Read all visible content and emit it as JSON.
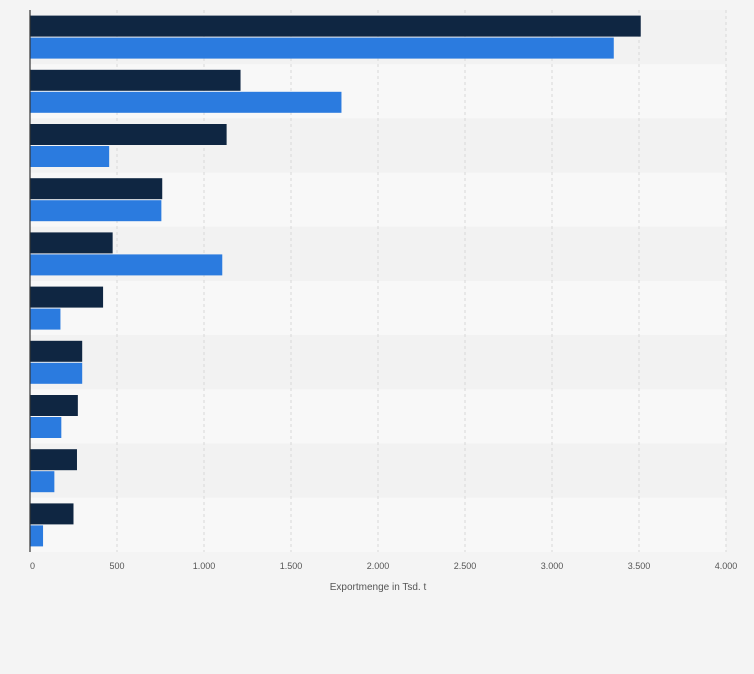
{
  "chart_data": {
    "type": "bar",
    "orientation": "horizontal",
    "categories": [
      "",
      "",
      "",
      "",
      "",
      "",
      "",
      "",
      "",
      ""
    ],
    "series": [
      {
        "color": "#0f2642",
        "values": [
          3510,
          1210,
          1130,
          760,
          475,
          420,
          300,
          275,
          270,
          250
        ]
      },
      {
        "color": "#2b7bdf",
        "values": [
          3355,
          1790,
          455,
          755,
          1105,
          175,
          300,
          180,
          140,
          75
        ]
      }
    ],
    "xlabel": "Exportmenge in Tsd. t",
    "xlim": [
      0,
      4000
    ],
    "x_ticks": [
      0,
      500,
      1000,
      1500,
      2000,
      2500,
      3000,
      3500,
      4000
    ],
    "x_tick_labels": [
      "0",
      "500",
      "1.000",
      "1.500",
      "2.000",
      "2.500",
      "3.000",
      "3.500",
      "4.000"
    ],
    "grid": true,
    "colors": {
      "background": "#f4f4f4",
      "band_dark": "#f2f2f2",
      "band_light": "#f8f8f8",
      "gridline": "#d8d8d8",
      "axis": "#333333",
      "tick_text": "#555555"
    }
  }
}
